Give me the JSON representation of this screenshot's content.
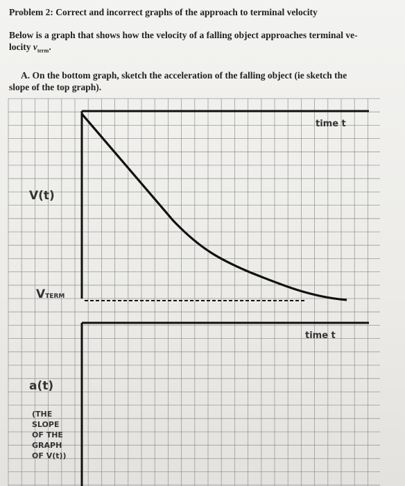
{
  "header": {
    "title": "Problem 2: Correct and incorrect graphs of the approach to terminal velocity"
  },
  "intro": {
    "lines": [
      "Below is a graph that shows how the velocity of a falling object approaches terminal ve-",
      "locity"
    ],
    "symbol": "v",
    "symbol_subscript": "term",
    "end": "."
  },
  "question": {
    "lines": [
      "A. On the bottom graph, sketch the acceleration of the falling object (ie sketch the",
      "slope of the top graph)."
    ]
  },
  "top_graph": {
    "x_label": "time t",
    "y_label": "V(t)",
    "terminal_label": "V",
    "terminal_subscript": "TERM"
  },
  "bottom_graph": {
    "x_label": "time t",
    "y_label": "a(t)",
    "note_lines": [
      "(THE",
      "SLOPE",
      "OF THE",
      "GRAPH",
      "OF V(t))"
    ]
  }
}
